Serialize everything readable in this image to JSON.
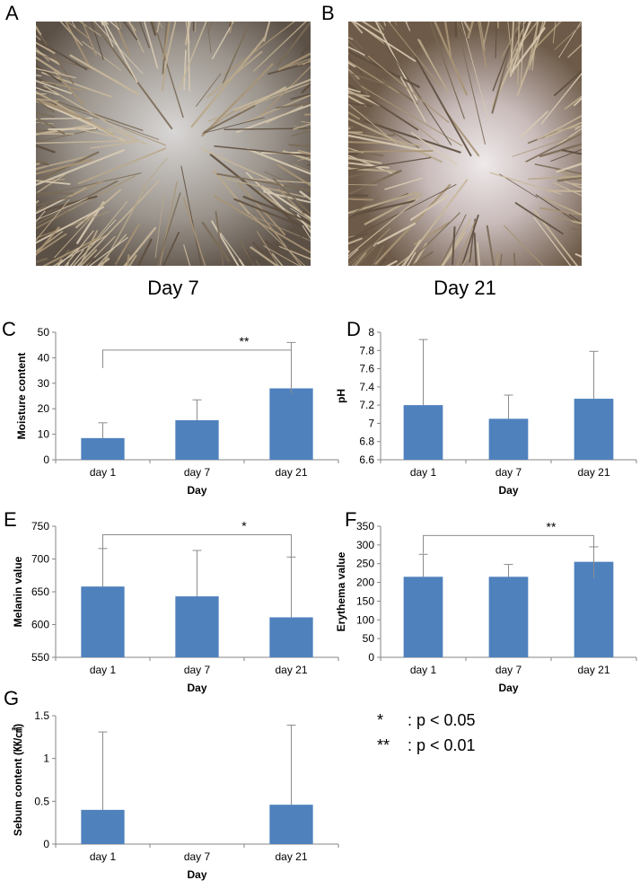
{
  "photos": [
    {
      "panel": "A",
      "caption": "Day 7"
    },
    {
      "panel": "B",
      "caption": "Day 21"
    }
  ],
  "legend": [
    {
      "symbol": "*",
      "text": ": p < 0.05"
    },
    {
      "symbol": "**",
      "text": ": p < 0.01"
    }
  ],
  "colors": {
    "bar": "#4f81bd",
    "axis": "#868686",
    "error": "#8c8c8c"
  },
  "chart_data": [
    {
      "panel": "C",
      "type": "bar",
      "categories": [
        "day 1",
        "day 7",
        "day 21"
      ],
      "values": [
        8.5,
        15.5,
        28
      ],
      "errors": [
        6,
        8,
        18
      ],
      "xlabel": "Day",
      "ylabel": "Moisture content",
      "ylim": [
        0,
        50
      ],
      "yticks": [
        0,
        10,
        20,
        30,
        40,
        50
      ],
      "ytick_labels": [
        "0",
        "10",
        "20",
        "30",
        "40",
        "50"
      ],
      "significance": {
        "from": 0,
        "to": 2,
        "label": "**",
        "level": 43
      }
    },
    {
      "panel": "D",
      "type": "bar",
      "categories": [
        "day 1",
        "day 7",
        "day 21"
      ],
      "values": [
        7.2,
        7.05,
        7.27
      ],
      "errors": [
        0.72,
        0.26,
        0.52
      ],
      "xlabel": "Day",
      "ylabel": "pH",
      "ylim": [
        6.6,
        8
      ],
      "yticks": [
        6.6,
        6.8,
        7,
        7.2,
        7.4,
        7.6,
        7.8,
        8
      ],
      "ytick_labels": [
        "6.6",
        "6.8",
        "7",
        "7.2",
        "7.4",
        "7.6",
        "7.8",
        "8"
      ]
    },
    {
      "panel": "E",
      "type": "bar",
      "categories": [
        "day 1",
        "day 7",
        "day 21"
      ],
      "values": [
        658,
        643,
        611
      ],
      "errors": [
        58,
        70,
        92
      ],
      "xlabel": "Day",
      "ylabel": "Melanin value",
      "ylim": [
        550,
        750
      ],
      "yticks": [
        550,
        600,
        650,
        700,
        750
      ],
      "ytick_labels": [
        "550",
        "600",
        "650",
        "700",
        "750"
      ],
      "significance": {
        "from": 0,
        "to": 2,
        "label": "*",
        "level": 737
      }
    },
    {
      "panel": "F",
      "type": "bar",
      "categories": [
        "day 1",
        "day 7",
        "day 21"
      ],
      "values": [
        215,
        215,
        255
      ],
      "errors": [
        60,
        33,
        40
      ],
      "xlabel": "Day",
      "ylabel": "Erythema value",
      "ylim": [
        0,
        350
      ],
      "yticks": [
        0,
        50,
        100,
        150,
        200,
        250,
        300,
        350
      ],
      "ytick_labels": [
        "0",
        "50",
        "100",
        "150",
        "200",
        "250",
        "300",
        "350"
      ],
      "significance": {
        "from": 0,
        "to": 2,
        "label": "**",
        "level": 325
      }
    },
    {
      "panel": "G",
      "type": "bar",
      "categories": [
        "day 1",
        "day 7",
        "day 21"
      ],
      "values": [
        0.4,
        0,
        0.46
      ],
      "errors": [
        0.91,
        0,
        0.93
      ],
      "xlabel": "Day",
      "ylabel": "Sebum content (㏍/㎠)",
      "ylim": [
        0,
        1.5
      ],
      "yticks": [
        0,
        0.5,
        1,
        1.5
      ],
      "ytick_labels": [
        "0",
        "0.5",
        "1",
        "1.5"
      ]
    }
  ]
}
